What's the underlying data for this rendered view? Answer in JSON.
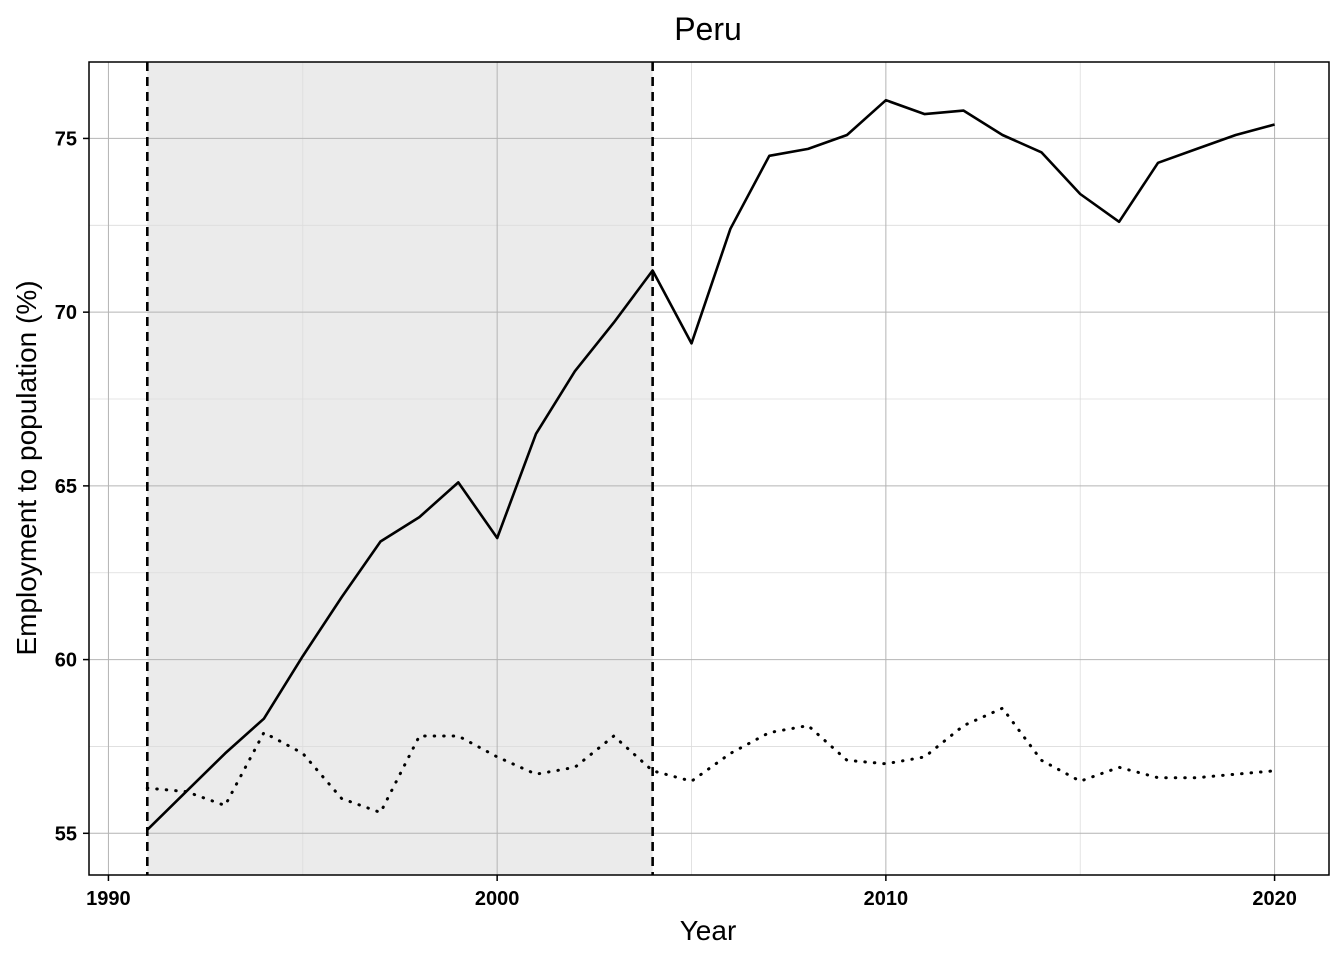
{
  "chart_data": {
    "type": "line",
    "title": "Peru",
    "xlabel": "Year",
    "ylabel": "Employment to population (%)",
    "xlim": [
      1989.5,
      2021.4
    ],
    "ylim": [
      53.8,
      77.2
    ],
    "xticks": [
      1990,
      2000,
      2010,
      2020
    ],
    "yticks": [
      55,
      60,
      65,
      70,
      75
    ],
    "grid": true,
    "shaded_region": {
      "x_start": 1991,
      "x_end": 2004
    },
    "vlines": [
      1991,
      2004
    ],
    "x": [
      1991,
      1992,
      1993,
      1994,
      1995,
      1996,
      1997,
      1998,
      1999,
      2000,
      2001,
      2002,
      2003,
      2004,
      2005,
      2006,
      2007,
      2008,
      2009,
      2010,
      2011,
      2012,
      2013,
      2014,
      2015,
      2016,
      2017,
      2018,
      2019,
      2020
    ],
    "series": [
      {
        "style": "solid",
        "values": [
          55.1,
          56.2,
          57.3,
          58.3,
          60.1,
          61.8,
          63.4,
          64.1,
          65.1,
          63.5,
          66.5,
          68.3,
          69.7,
          71.2,
          69.1,
          72.4,
          74.5,
          74.7,
          75.1,
          76.1,
          75.7,
          75.8,
          75.1,
          74.6,
          73.4,
          72.6,
          74.3,
          74.7,
          75.1,
          75.4
        ]
      },
      {
        "style": "dotted",
        "values": [
          56.3,
          56.2,
          55.8,
          57.9,
          57.3,
          56.0,
          55.6,
          57.8,
          57.8,
          57.2,
          56.7,
          56.9,
          57.8,
          56.8,
          56.5,
          57.3,
          57.9,
          58.1,
          57.1,
          57.0,
          57.2,
          58.1,
          58.6,
          57.1,
          56.5,
          56.9,
          56.6,
          56.6,
          56.7,
          56.8
        ]
      }
    ]
  }
}
